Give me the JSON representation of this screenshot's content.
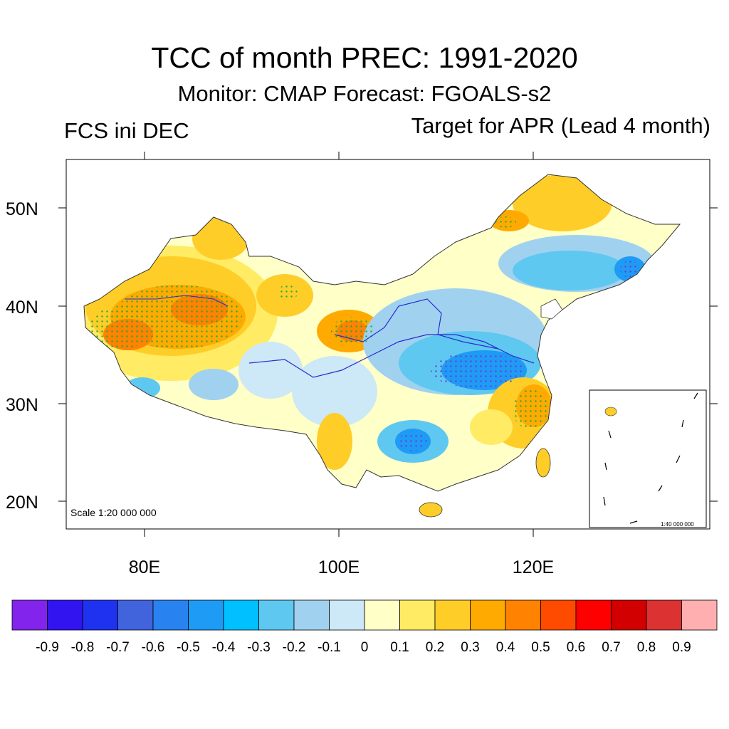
{
  "header": {
    "title": "TCC of month PREC: 1991-2020",
    "subtitle": "Monitor: CMAP   Forecast: FGOALS-s2",
    "left_label": "FCS ini DEC",
    "right_label": "Target for APR (Lead 4 month)"
  },
  "map": {
    "region": "China",
    "lat_ticks": [
      "50N",
      "40N",
      "30N",
      "20N"
    ],
    "lon_ticks": [
      "80E",
      "100E",
      "120E"
    ],
    "scale_label": "Scale 1:20 000 000",
    "inset_scale_label": "1:40 000 000"
  },
  "colorbar": {
    "labels": [
      "-0.9",
      "-0.8",
      "-0.7",
      "-0.6",
      "-0.5",
      "-0.4",
      "-0.3",
      "-0.2",
      "-0.1",
      "0",
      "0.1",
      "0.2",
      "0.3",
      "0.4",
      "0.5",
      "0.6",
      "0.7",
      "0.8",
      "0.9"
    ],
    "colors": [
      "#8224ec",
      "#3214f0",
      "#1e32f0",
      "#4164dc",
      "#2882f0",
      "#1e9bf5",
      "#00c0ff",
      "#5fc8f0",
      "#a0d2f0",
      "#cde8f6",
      "#ffffc8",
      "#ffeb64",
      "#ffcd28",
      "#ffaa00",
      "#ff8200",
      "#ff4b00",
      "#ff0000",
      "#d20000",
      "#dc3232",
      "#ffafaf"
    ]
  }
}
